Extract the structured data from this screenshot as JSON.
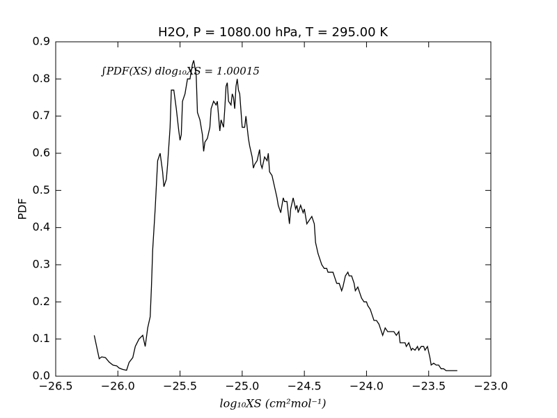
{
  "chart_data": {
    "type": "line",
    "title": "H2O, P = 1080.00 hPa, T = 295.00 K",
    "xlabel": "log₁₀XS (cm²mol⁻¹)",
    "ylabel": "PDF",
    "annotation": "∫PDF(XS) dlog₁₀XS = 1.00015",
    "x": [
      -26.19,
      -26.15,
      -26.13,
      -26.1,
      -26.07,
      -26.04,
      -26.01,
      -25.99,
      -25.96,
      -25.93,
      -25.91,
      -25.88,
      -25.86,
      -25.83,
      -25.8,
      -25.78,
      -25.76,
      -25.74,
      -25.73,
      -25.72,
      -25.7,
      -25.68,
      -25.66,
      -25.64,
      -25.63,
      -25.61,
      -25.6,
      -25.58,
      -25.57,
      -25.56,
      -25.55,
      -25.53,
      -25.51,
      -25.5,
      -25.49,
      -25.48,
      -25.46,
      -25.44,
      -25.42,
      -25.4,
      -25.39,
      -25.37,
      -25.36,
      -25.34,
      -25.32,
      -25.31,
      -25.3,
      -25.28,
      -25.26,
      -25.25,
      -25.23,
      -25.21,
      -25.2,
      -25.19,
      -25.18,
      -25.17,
      -25.15,
      -25.14,
      -25.13,
      -25.12,
      -25.11,
      -25.09,
      -25.08,
      -25.07,
      -25.06,
      -25.05,
      -25.04,
      -25.03,
      -25.02,
      -25.0,
      -24.98,
      -24.97,
      -24.95,
      -24.94,
      -24.92,
      -24.91,
      -24.9,
      -24.88,
      -24.86,
      -24.85,
      -24.84,
      -24.82,
      -24.8,
      -24.79,
      -24.78,
      -24.76,
      -24.74,
      -24.72,
      -24.71,
      -24.69,
      -24.67,
      -24.66,
      -24.64,
      -24.62,
      -24.61,
      -24.59,
      -24.57,
      -24.56,
      -24.55,
      -24.53,
      -24.51,
      -24.5,
      -24.48,
      -24.46,
      -24.44,
      -24.42,
      -24.41,
      -24.39,
      -24.37,
      -24.36,
      -24.34,
      -24.32,
      -24.31,
      -24.29,
      -24.27,
      -24.25,
      -24.24,
      -24.22,
      -24.2,
      -24.19,
      -24.17,
      -24.15,
      -24.14,
      -24.12,
      -24.1,
      -24.09,
      -24.07,
      -24.05,
      -24.04,
      -24.02,
      -24.0,
      -23.99,
      -23.97,
      -23.95,
      -23.94,
      -23.92,
      -23.9,
      -23.89,
      -23.87,
      -23.85,
      -23.83,
      -23.81,
      -23.8,
      -23.78,
      -23.76,
      -23.74,
      -23.73,
      -23.71,
      -23.69,
      -23.68,
      -23.66,
      -23.64,
      -23.63,
      -23.61,
      -23.59,
      -23.58,
      -23.56,
      -23.54,
      -23.53,
      -23.51,
      -23.49,
      -23.48,
      -23.46,
      -23.44,
      -23.42,
      -23.4,
      -23.38,
      -23.36,
      -23.34,
      -23.27
    ],
    "series": [
      {
        "color": "#000000",
        "values": [
          0.11,
          0.047,
          0.052,
          0.05,
          0.038,
          0.03,
          0.028,
          0.022,
          0.018,
          0.016,
          0.037,
          0.05,
          0.08,
          0.1,
          0.11,
          0.08,
          0.13,
          0.16,
          0.24,
          0.34,
          0.45,
          0.58,
          0.6,
          0.55,
          0.51,
          0.53,
          0.57,
          0.67,
          0.77,
          0.77,
          0.77,
          0.72,
          0.66,
          0.635,
          0.65,
          0.74,
          0.76,
          0.8,
          0.8,
          0.84,
          0.85,
          0.81,
          0.71,
          0.69,
          0.65,
          0.605,
          0.63,
          0.64,
          0.67,
          0.72,
          0.74,
          0.73,
          0.74,
          0.7,
          0.66,
          0.69,
          0.67,
          0.72,
          0.78,
          0.79,
          0.74,
          0.73,
          0.76,
          0.75,
          0.72,
          0.78,
          0.8,
          0.77,
          0.76,
          0.67,
          0.67,
          0.7,
          0.64,
          0.62,
          0.59,
          0.56,
          0.57,
          0.58,
          0.61,
          0.57,
          0.56,
          0.59,
          0.58,
          0.6,
          0.55,
          0.54,
          0.51,
          0.48,
          0.46,
          0.44,
          0.48,
          0.47,
          0.47,
          0.41,
          0.45,
          0.48,
          0.45,
          0.46,
          0.44,
          0.46,
          0.44,
          0.45,
          0.41,
          0.42,
          0.43,
          0.41,
          0.36,
          0.33,
          0.31,
          0.3,
          0.29,
          0.29,
          0.28,
          0.28,
          0.28,
          0.26,
          0.25,
          0.25,
          0.23,
          0.24,
          0.27,
          0.28,
          0.27,
          0.27,
          0.25,
          0.23,
          0.24,
          0.22,
          0.21,
          0.2,
          0.2,
          0.19,
          0.18,
          0.16,
          0.15,
          0.15,
          0.14,
          0.13,
          0.11,
          0.13,
          0.12,
          0.12,
          0.12,
          0.12,
          0.11,
          0.12,
          0.09,
          0.09,
          0.09,
          0.08,
          0.09,
          0.07,
          0.075,
          0.07,
          0.08,
          0.07,
          0.08,
          0.08,
          0.07,
          0.08,
          0.05,
          0.03,
          0.035,
          0.03,
          0.03,
          0.02,
          0.02,
          0.015,
          0.015,
          0.015
        ]
      }
    ],
    "xlim": [
      -26.5,
      -23.0
    ],
    "xticks": [
      {
        "value": -26.5,
        "label": "−26.5"
      },
      {
        "value": -26.0,
        "label": "−26.0"
      },
      {
        "value": -25.5,
        "label": "−25.5"
      },
      {
        "value": -25.0,
        "label": "−25.0"
      },
      {
        "value": -24.5,
        "label": "−24.5"
      },
      {
        "value": -24.0,
        "label": "−24.0"
      },
      {
        "value": -23.5,
        "label": "−23.5"
      },
      {
        "value": -23.0,
        "label": "−23.0"
      }
    ],
    "ylim": [
      0,
      0.9
    ],
    "yticks": [
      {
        "value": 0,
        "label": "0.0"
      },
      0.1,
      0.2,
      0.3,
      0.4,
      0.5,
      0.6,
      0.7,
      0.8,
      0.9
    ],
    "grid": false
  }
}
